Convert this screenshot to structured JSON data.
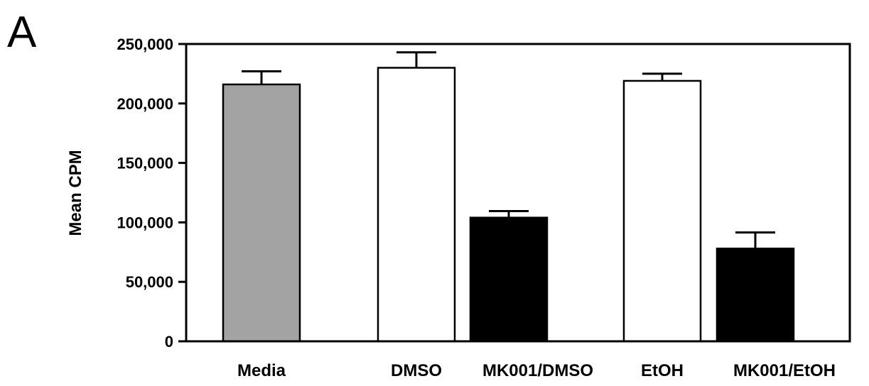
{
  "panel_label": "A",
  "chart_data": {
    "type": "bar",
    "title": "",
    "xlabel": "",
    "ylabel": "Mean  CPM",
    "ylim": [
      0,
      250000
    ],
    "yticks": [
      0,
      50000,
      100000,
      150000,
      200000,
      250000
    ],
    "ytick_labels": [
      "0",
      "50,000",
      "100,000",
      "150,000",
      "200,000",
      "250,000"
    ],
    "grid": false,
    "categories": [
      "Media",
      "DMSO",
      "MK001/DMSO",
      "EtOH",
      "MK001/EtOH"
    ],
    "values": [
      216000,
      230000,
      104000,
      219000,
      78000
    ],
    "errors": [
      11000,
      13000,
      5500,
      6000,
      13500
    ],
    "colors": [
      "#a3a3a3",
      "#ffffff",
      "#000000",
      "#ffffff",
      "#000000"
    ]
  }
}
